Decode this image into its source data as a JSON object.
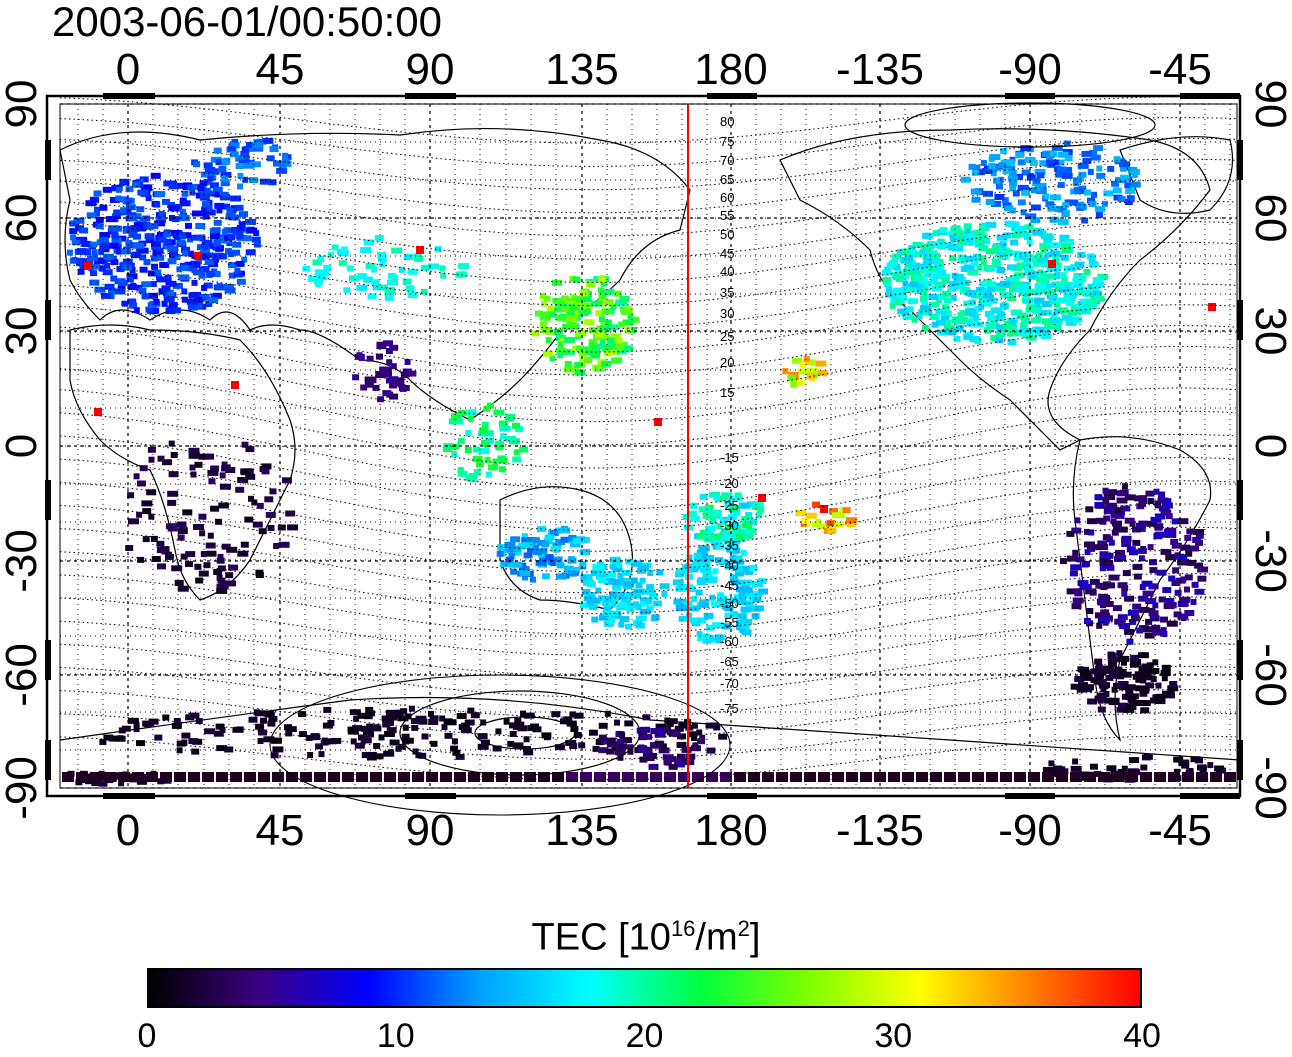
{
  "timestamp": "2003-06-01/00:50:00",
  "map": {
    "lon_tick_labels": [
      "0",
      "45",
      "90",
      "135",
      "180",
      "-135",
      "-90",
      "-45"
    ],
    "lat_tick_labels": [
      "90",
      "60",
      "30",
      "0",
      "-30",
      "-60",
      "-90"
    ],
    "contour_labels": [
      "80",
      "75",
      "70",
      "65",
      "60",
      "55",
      "50",
      "45",
      "40",
      "35",
      "30",
      "25",
      "20",
      "15",
      "-15",
      "-20",
      "-25",
      "-30",
      "-35",
      "-40",
      "-45",
      "-50",
      "-55",
      "-60",
      "-65",
      "-70",
      "-75"
    ],
    "colors": {
      "meridian_line": "#ff0000",
      "coast": "#000000"
    }
  },
  "colorbar": {
    "title_main": "TEC  [10",
    "title_exp1": "16",
    "title_mid": "/m",
    "title_exp2": "2",
    "title_end": "]",
    "ticks": [
      "0",
      "10",
      "20",
      "30",
      "40"
    ],
    "min": 0,
    "max": 40,
    "stops": [
      "#000000",
      "#3a0080",
      "#0000ff",
      "#00a0ff",
      "#00ffff",
      "#00ff40",
      "#80ff00",
      "#ffff00",
      "#ff8000",
      "#ff0000"
    ]
  }
}
